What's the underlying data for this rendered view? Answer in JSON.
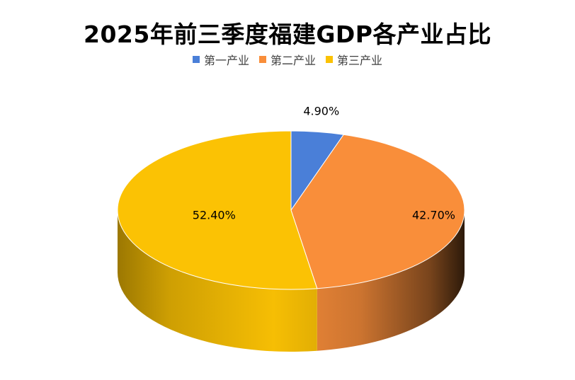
{
  "chart_data": {
    "type": "pie",
    "title": "2025年前三季度福建GDP各产业占比",
    "categories": [
      "第一产业",
      "第二产业",
      "第三产业"
    ],
    "values": [
      4.9,
      42.7,
      52.4
    ],
    "labels": [
      "4.90%",
      "42.70%",
      "52.40%"
    ],
    "colors": [
      "#4a7fd8",
      "#f98e3a",
      "#fbc204"
    ],
    "legend": "top",
    "three_d": true
  }
}
